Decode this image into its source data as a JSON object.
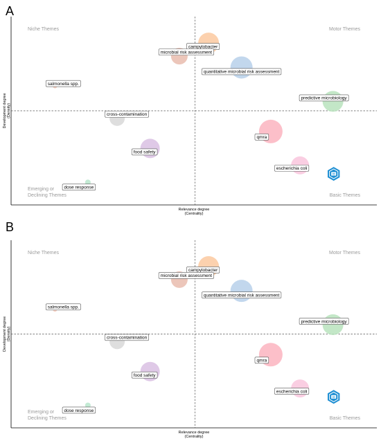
{
  "colors": {
    "campylobacter": "#fbc9a0",
    "microbial_risk_assessment": "#e9bcae",
    "quantitative_microbial_risk_assessment": "#b7d0ea",
    "predictive_microbiology": "#b9e3bd",
    "salmonella_spp": "#f7c9b8",
    "cross_contamination": "#d8d8d8",
    "qmra": "#fbb4bf",
    "food_safety": "#d9c0e3",
    "escherichia_coli": "#f9c6dd",
    "dose_response": "#b9e6cc",
    "logo": "#1f8fd3"
  },
  "chart_data": [
    {
      "panel": "A",
      "type": "scatter",
      "xlabel_line1": "Relevance degree",
      "xlabel_line2": "(Centrality)",
      "ylabel_line1": "Development degree",
      "ylabel_line2": "(Density)",
      "quadrants": {
        "top_left": "Niche Themes",
        "top_right": "Motor Themes",
        "bottom_left_line1": "Emerging or",
        "bottom_left_line2": "Declining Themes",
        "bottom_right": "Basic Themes"
      },
      "points": [
        {
          "label": "campylobacter",
          "color_key": "campylobacter",
          "x": 0.54,
          "y": 0.86,
          "size": 15
        },
        {
          "label": "microbial risk assessment",
          "color_key": "microbial_risk_assessment",
          "x": 0.46,
          "y": 0.79,
          "size": 12
        },
        {
          "label": "quantitative microbial risk assessment",
          "color_key": "quantitative_microbial_risk_assessment",
          "x": 0.63,
          "y": 0.73,
          "size": 16
        },
        {
          "label": "predictive microbiology",
          "color_key": "predictive_microbiology",
          "x": 0.88,
          "y": 0.55,
          "size": 15
        },
        {
          "label": "salmonella spp.",
          "color_key": "salmonella_spp",
          "x": 0.12,
          "y": 0.63,
          "size": 3
        },
        {
          "label": "cross-contamination",
          "color_key": "cross_contamination",
          "x": 0.29,
          "y": 0.46,
          "size": 11
        },
        {
          "label": "qmra",
          "color_key": "qmra",
          "x": 0.71,
          "y": 0.39,
          "size": 17
        },
        {
          "label": "food safety",
          "color_key": "food_safety",
          "x": 0.38,
          "y": 0.3,
          "size": 14
        },
        {
          "label": "escherichia coli",
          "color_key": "escherichia_coli",
          "x": 0.79,
          "y": 0.21,
          "size": 13
        },
        {
          "label": "dose response",
          "color_key": "dose_response",
          "x": 0.21,
          "y": 0.12,
          "size": 4
        }
      ]
    },
    {
      "panel": "B",
      "type": "scatter",
      "xlabel_line1": "Relevance degree",
      "xlabel_line2": "(Centrality)",
      "ylabel_line1": "Development degree",
      "ylabel_line2": "(Density)",
      "quadrants": {
        "top_left": "Niche Themes",
        "top_right": "Motor Themes",
        "bottom_left_line1": "Emerging or",
        "bottom_left_line2": "Declining Themes",
        "bottom_right": "Basic Themes"
      },
      "points": [
        {
          "label": "campylobacter",
          "color_key": "campylobacter",
          "x": 0.54,
          "y": 0.86,
          "size": 15
        },
        {
          "label": "microbial risk assessment",
          "color_key": "microbial_risk_assessment",
          "x": 0.46,
          "y": 0.79,
          "size": 12
        },
        {
          "label": "quantitative microbial risk assessment",
          "color_key": "quantitative_microbial_risk_assessment",
          "x": 0.63,
          "y": 0.73,
          "size": 16
        },
        {
          "label": "predictive microbiology",
          "color_key": "predictive_microbiology",
          "x": 0.88,
          "y": 0.55,
          "size": 15
        },
        {
          "label": "salmonella spp.",
          "color_key": "salmonella_spp",
          "x": 0.12,
          "y": 0.63,
          "size": 3
        },
        {
          "label": "cross-contamination",
          "color_key": "cross_contamination",
          "x": 0.29,
          "y": 0.46,
          "size": 11
        },
        {
          "label": "qmra",
          "color_key": "qmra",
          "x": 0.71,
          "y": 0.39,
          "size": 17
        },
        {
          "label": "food safety",
          "color_key": "food_safety",
          "x": 0.38,
          "y": 0.3,
          "size": 14
        },
        {
          "label": "escherichia coli",
          "color_key": "escherichia_coli",
          "x": 0.79,
          "y": 0.21,
          "size": 13
        },
        {
          "label": "dose response",
          "color_key": "dose_response",
          "x": 0.21,
          "y": 0.12,
          "size": 4
        }
      ]
    }
  ]
}
